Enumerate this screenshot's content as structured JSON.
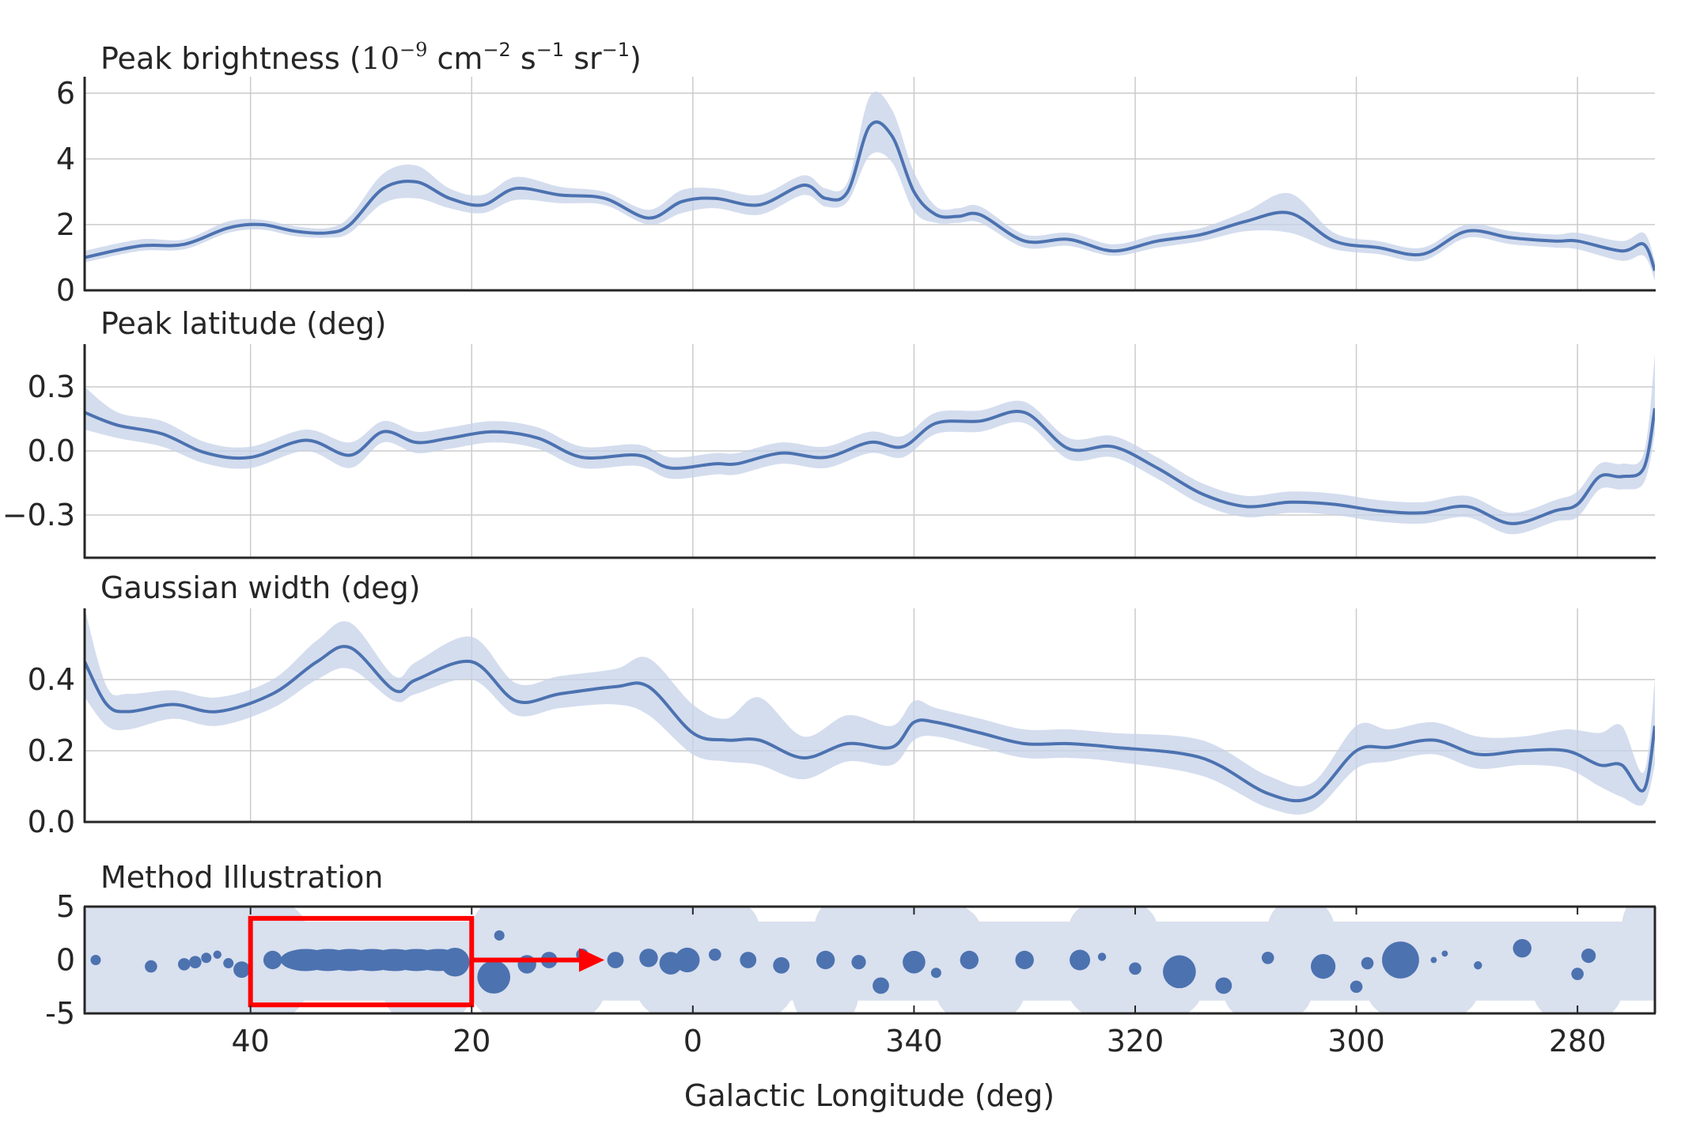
{
  "chart_data": [
    {
      "type": "line",
      "title": "Peak brightness (10⁻⁹ cm⁻² s⁻¹ sr⁻¹)",
      "title_parts": {
        "prefix": "Peak brightness (",
        "base": "10",
        "exp": "−9",
        "unit1": " cm",
        "unit1_exp": "−2",
        "unit2": " s",
        "unit2_exp": "−1",
        "unit3": " sr",
        "unit3_exp": "−1",
        "suffix": ")"
      },
      "xlim": [
        55,
        -87
      ],
      "ylim": [
        0,
        6.5
      ],
      "yticks": [
        0,
        2,
        4,
        6
      ],
      "ytick_labels": [
        "0",
        "2",
        "4",
        "6"
      ],
      "grid": true,
      "color": "#4c72b0",
      "band_color": "#c5d1e8",
      "x": [
        55,
        50,
        46,
        42,
        39,
        36,
        33,
        31,
        28,
        25,
        22,
        19,
        16,
        12,
        8,
        4,
        1,
        -2,
        -6,
        -10,
        -12,
        -14,
        -16,
        -18,
        -20,
        -22,
        -24,
        -26,
        -30,
        -34,
        -38,
        -42,
        -46,
        -50,
        -54,
        -58,
        -62,
        -66,
        -70,
        -74,
        -78,
        -80,
        -84,
        -86,
        -87
      ],
      "y": [
        1.0,
        1.35,
        1.4,
        1.9,
        2.0,
        1.8,
        1.75,
        2.0,
        3.1,
        3.3,
        2.8,
        2.6,
        3.1,
        2.9,
        2.8,
        2.2,
        2.7,
        2.8,
        2.6,
        3.2,
        2.8,
        3.0,
        5.0,
        4.7,
        3.0,
        2.3,
        2.25,
        2.3,
        1.5,
        1.55,
        1.2,
        1.5,
        1.7,
        2.1,
        2.35,
        1.5,
        1.3,
        1.1,
        1.8,
        1.6,
        1.5,
        1.5,
        1.2,
        1.4,
        0.6
      ],
      "y_lower": [
        0.85,
        1.2,
        1.25,
        1.75,
        1.85,
        1.65,
        1.6,
        1.75,
        2.65,
        2.8,
        2.5,
        2.35,
        2.75,
        2.65,
        2.6,
        2.0,
        2.35,
        2.5,
        2.3,
        2.9,
        2.55,
        2.7,
        4.1,
        3.9,
        2.4,
        2.05,
        2.05,
        2.05,
        1.3,
        1.35,
        1.05,
        1.3,
        1.5,
        1.8,
        1.75,
        1.25,
        1.1,
        0.9,
        1.6,
        1.4,
        1.3,
        1.25,
        0.9,
        1.05,
        0.3
      ],
      "y_upper": [
        1.2,
        1.55,
        1.55,
        2.1,
        2.15,
        1.95,
        1.9,
        2.25,
        3.55,
        3.8,
        3.1,
        2.9,
        3.45,
        3.15,
        3.0,
        2.45,
        3.05,
        3.1,
        2.9,
        3.5,
        3.1,
        3.3,
        5.9,
        5.5,
        3.6,
        2.55,
        2.5,
        2.55,
        1.7,
        1.75,
        1.4,
        1.7,
        1.9,
        2.4,
        2.95,
        1.75,
        1.5,
        1.3,
        2.0,
        1.8,
        1.7,
        1.75,
        1.5,
        1.75,
        0.9
      ]
    },
    {
      "type": "line",
      "title": "Peak latitude (deg)",
      "xlim": [
        55,
        -87
      ],
      "ylim": [
        -0.5,
        0.5
      ],
      "yticks": [
        -0.3,
        0.0,
        0.3
      ],
      "ytick_labels": [
        "−0.3",
        "0.0",
        "0.3"
      ],
      "grid": true,
      "color": "#4c72b0",
      "band_color": "#c5d1e8",
      "x": [
        55,
        52,
        48,
        44,
        40,
        35,
        31,
        28,
        25,
        22,
        18,
        14,
        10,
        5,
        2,
        -2,
        -4,
        -8,
        -12,
        -16,
        -19,
        -22,
        -26,
        -30,
        -34,
        -38,
        -42,
        -46,
        -50,
        -54,
        -58,
        -62,
        -66,
        -70,
        -74,
        -78,
        -80,
        -82,
        -84,
        -86,
        -87
      ],
      "y": [
        0.18,
        0.12,
        0.08,
        -0.01,
        -0.03,
        0.05,
        -0.02,
        0.09,
        0.04,
        0.06,
        0.09,
        0.06,
        -0.03,
        -0.02,
        -0.08,
        -0.06,
        -0.06,
        -0.01,
        -0.03,
        0.04,
        0.02,
        0.13,
        0.14,
        0.18,
        0.01,
        0.02,
        -0.08,
        -0.2,
        -0.26,
        -0.24,
        -0.25,
        -0.28,
        -0.29,
        -0.26,
        -0.34,
        -0.28,
        -0.25,
        -0.12,
        -0.12,
        -0.08,
        0.2
      ],
      "y_lower": [
        0.1,
        0.06,
        0.02,
        -0.06,
        -0.08,
        0.0,
        -0.08,
        0.04,
        -0.01,
        0.01,
        0.04,
        0.01,
        -0.08,
        -0.07,
        -0.13,
        -0.11,
        -0.11,
        -0.06,
        -0.08,
        -0.01,
        -0.03,
        0.08,
        0.09,
        0.13,
        -0.04,
        -0.03,
        -0.13,
        -0.25,
        -0.31,
        -0.29,
        -0.3,
        -0.33,
        -0.34,
        -0.31,
        -0.39,
        -0.33,
        -0.31,
        -0.18,
        -0.18,
        -0.15,
        0.08
      ],
      "y_upper": [
        0.3,
        0.18,
        0.14,
        0.04,
        0.02,
        0.1,
        0.04,
        0.14,
        0.09,
        0.11,
        0.14,
        0.11,
        0.02,
        0.03,
        -0.03,
        -0.01,
        -0.01,
        0.04,
        0.02,
        0.09,
        0.07,
        0.18,
        0.19,
        0.23,
        0.06,
        0.07,
        -0.03,
        -0.15,
        -0.21,
        -0.19,
        -0.2,
        -0.23,
        -0.24,
        -0.21,
        -0.29,
        -0.23,
        -0.19,
        -0.06,
        -0.06,
        -0.01,
        0.45
      ]
    },
    {
      "type": "line",
      "title": "Gaussian width (deg)",
      "xlim": [
        55,
        -87
      ],
      "ylim": [
        0,
        0.6
      ],
      "yticks": [
        0.0,
        0.2,
        0.4
      ],
      "ytick_labels": [
        "0.0",
        "0.2",
        "0.4"
      ],
      "grid": true,
      "color": "#4c72b0",
      "band_color": "#c5d1e8",
      "x": [
        55,
        53,
        51,
        47,
        43,
        38,
        34,
        31,
        27,
        25,
        20,
        16,
        12,
        7,
        4,
        0,
        -3,
        -6,
        -10,
        -14,
        -18,
        -20,
        -22,
        -26,
        -30,
        -34,
        -38,
        -46,
        -52,
        -56,
        -60,
        -63,
        -67,
        -71,
        -75,
        -79,
        -82,
        -84,
        -86,
        -87
      ],
      "y": [
        0.45,
        0.33,
        0.31,
        0.33,
        0.31,
        0.36,
        0.45,
        0.49,
        0.37,
        0.4,
        0.45,
        0.34,
        0.36,
        0.38,
        0.38,
        0.25,
        0.23,
        0.23,
        0.18,
        0.22,
        0.21,
        0.28,
        0.28,
        0.25,
        0.22,
        0.22,
        0.21,
        0.18,
        0.08,
        0.07,
        0.2,
        0.21,
        0.23,
        0.19,
        0.2,
        0.2,
        0.16,
        0.16,
        0.09,
        0.27
      ],
      "y_lower": [
        0.35,
        0.27,
        0.26,
        0.29,
        0.27,
        0.32,
        0.4,
        0.43,
        0.34,
        0.36,
        0.4,
        0.3,
        0.32,
        0.33,
        0.3,
        0.19,
        0.17,
        0.16,
        0.12,
        0.17,
        0.16,
        0.23,
        0.24,
        0.21,
        0.18,
        0.18,
        0.17,
        0.13,
        0.04,
        0.03,
        0.15,
        0.17,
        0.19,
        0.15,
        0.16,
        0.15,
        0.1,
        0.07,
        0.05,
        0.16
      ],
      "y_upper": [
        0.6,
        0.38,
        0.36,
        0.37,
        0.35,
        0.4,
        0.51,
        0.56,
        0.41,
        0.45,
        0.52,
        0.39,
        0.41,
        0.43,
        0.46,
        0.33,
        0.29,
        0.35,
        0.24,
        0.3,
        0.27,
        0.34,
        0.32,
        0.29,
        0.26,
        0.26,
        0.25,
        0.23,
        0.13,
        0.11,
        0.27,
        0.26,
        0.28,
        0.24,
        0.24,
        0.26,
        0.25,
        0.27,
        0.14,
        0.4
      ]
    },
    {
      "type": "scatter",
      "title": "Method Illustration",
      "xlabel": "Galactic Longitude (deg)",
      "xlim": [
        55,
        -87
      ],
      "ylim": [
        -5,
        5
      ],
      "yticks": [
        5,
        0,
        -5
      ],
      "ytick_labels": [
        "5",
        "0",
        "-5"
      ],
      "xticks": [
        40,
        20,
        0,
        -20,
        -40,
        -60,
        -80
      ],
      "xtick_labels": [
        "40",
        "20",
        "0",
        "340",
        "320",
        "300",
        "280"
      ],
      "grid": false,
      "color": "#4c72b0",
      "background_color": "#d9e0ee",
      "highlight_box": {
        "x": [
          40,
          20
        ],
        "y": [
          -4.2,
          3.9
        ],
        "color": "#ff0000"
      },
      "arrow": {
        "x": [
          20,
          8
        ],
        "y": [
          0,
          0
        ],
        "color": "#ff0000"
      },
      "x": [
        54,
        49,
        46,
        45,
        44,
        43,
        42,
        40.8,
        38,
        35,
        33,
        31,
        29,
        27,
        25,
        23,
        21.5,
        18,
        17.5,
        15,
        13,
        10,
        7,
        4,
        2,
        0.5,
        -2,
        -5,
        -8,
        -12,
        -15,
        -17,
        -20,
        -22,
        -25,
        -30,
        -35,
        -37,
        -40,
        -44,
        -48,
        -52,
        -57,
        -60,
        -61,
        -64,
        -67,
        -68,
        -71,
        -75,
        -80,
        -81
      ],
      "y": [
        0,
        -0.6,
        -0.4,
        -0.2,
        0.2,
        0.5,
        -0.3,
        -0.9,
        0,
        0,
        0,
        0,
        0,
        0,
        0,
        0,
        -0.2,
        -1.6,
        2.3,
        -0.4,
        0,
        0.5,
        0,
        0.2,
        -0.3,
        0,
        0.5,
        0,
        -0.5,
        0,
        -0.2,
        -2.4,
        -0.2,
        -1.2,
        0,
        0,
        0,
        0.3,
        -0.8,
        -1.1,
        -2.4,
        0.2,
        -0.6,
        -2.5,
        -0.3,
        0,
        0,
        0.6,
        -0.5,
        1.1,
        -1.3,
        0.4
      ],
      "r": [
        0.5,
        0.6,
        0.6,
        0.6,
        0.5,
        0.4,
        0.5,
        0.8,
        0.9,
        1.0,
        1.0,
        1.0,
        1.0,
        1.0,
        1.0,
        1.0,
        1.4,
        1.6,
        0.5,
        0.9,
        0.8,
        0.6,
        0.8,
        0.9,
        1.1,
        1.2,
        0.6,
        0.8,
        0.8,
        0.9,
        0.7,
        0.8,
        1.1,
        0.5,
        0.9,
        0.9,
        1.0,
        0.4,
        0.6,
        1.6,
        0.8,
        0.6,
        1.2,
        0.6,
        0.6,
        1.8,
        0.3,
        0.3,
        0.4,
        0.9,
        0.6,
        0.7
      ]
    }
  ]
}
